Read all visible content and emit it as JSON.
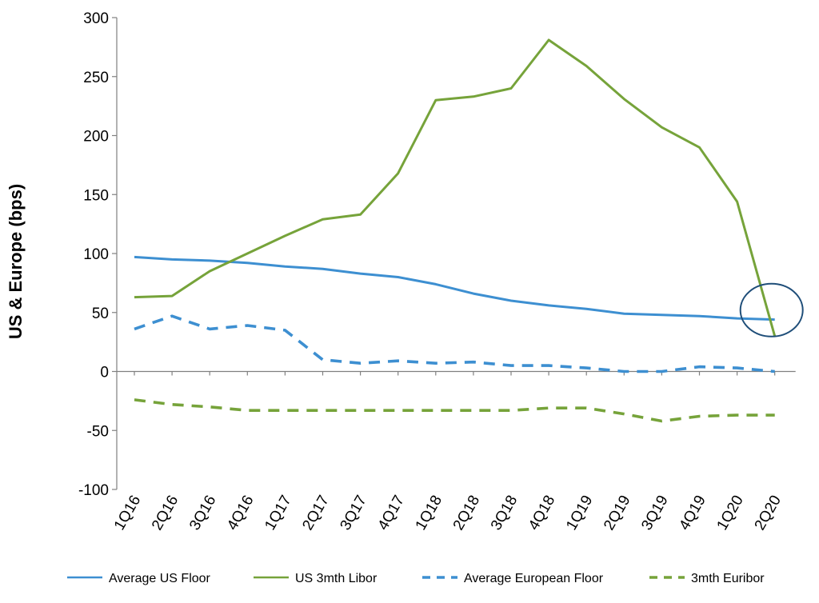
{
  "chart_data": {
    "type": "line",
    "title": "",
    "xlabel": "",
    "ylabel": "US & Europe (bps)",
    "ylim": [
      -100,
      300
    ],
    "yticks": [
      300,
      250,
      200,
      150,
      100,
      50,
      0,
      -50,
      -100
    ],
    "grid": false,
    "legend_position": "bottom",
    "categories": [
      "1Q16",
      "2Q16",
      "3Q16",
      "4Q16",
      "1Q17",
      "2Q17",
      "3Q17",
      "4Q17",
      "1Q18",
      "2Q18",
      "3Q18",
      "4Q18",
      "1Q19",
      "2Q19",
      "3Q19",
      "4Q19",
      "1Q20",
      "2Q20"
    ],
    "series": [
      {
        "name": "Average US Floor",
        "style": "solid",
        "color": "#3d8fd1",
        "values": [
          97,
          95,
          94,
          92,
          89,
          87,
          83,
          80,
          74,
          66,
          60,
          56,
          53,
          49,
          48,
          47,
          45,
          44
        ]
      },
      {
        "name": "US 3mth Libor",
        "style": "solid",
        "color": "#76a33a",
        "values": [
          63,
          64,
          85,
          100,
          115,
          129,
          133,
          168,
          230,
          233,
          240,
          281,
          259,
          231,
          207,
          190,
          144,
          30
        ]
      },
      {
        "name": "Average European Floor",
        "style": "dashed",
        "color": "#3d8fd1",
        "values": [
          36,
          47,
          36,
          39,
          35,
          10,
          7,
          9,
          7,
          8,
          5,
          5,
          3,
          0,
          0,
          4,
          3,
          0
        ]
      },
      {
        "name": "3mth Euribor",
        "style": "dashed",
        "color": "#76a33a",
        "values": [
          -24,
          -28,
          -30,
          -33,
          -33,
          -33,
          -33,
          -33,
          -33,
          -33,
          -33,
          -31,
          -31,
          -36,
          -42,
          -38,
          -37,
          -37
        ]
      }
    ],
    "annotation": {
      "type": "ellipse",
      "category": "2Q20",
      "value": 52,
      "color": "#1f4e79"
    }
  }
}
